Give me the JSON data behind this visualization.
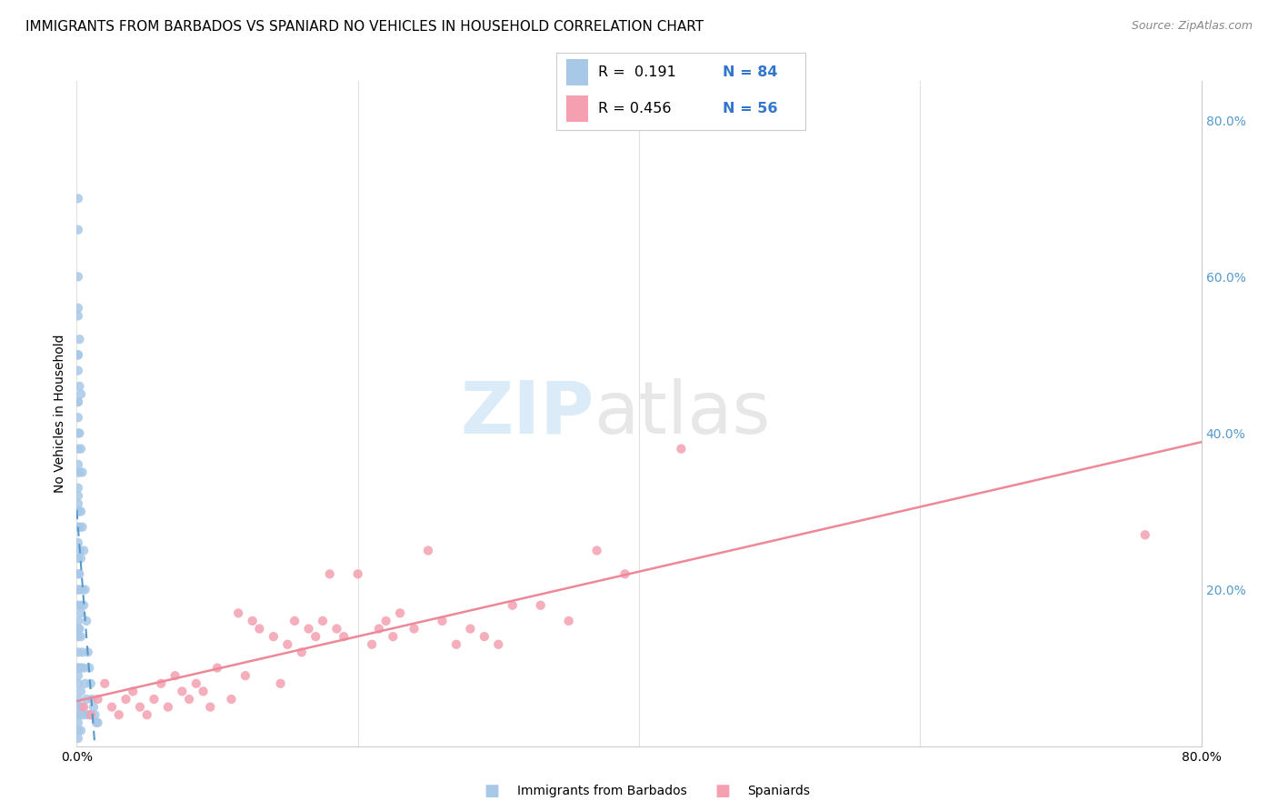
{
  "title": "IMMIGRANTS FROM BARBADOS VS SPANIARD NO VEHICLES IN HOUSEHOLD CORRELATION CHART",
  "source": "Source: ZipAtlas.com",
  "ylabel": "No Vehicles in Household",
  "barbados_color": "#a8c8e8",
  "spaniard_color": "#f4a0b0",
  "barbados_trend_color": "#5599cc",
  "spaniard_trend_color": "#ee8899",
  "background_color": "#ffffff",
  "barbados_x": [
    0.001,
    0.001,
    0.001,
    0.001,
    0.001,
    0.001,
    0.001,
    0.001,
    0.001,
    0.001,
    0.001,
    0.001,
    0.001,
    0.001,
    0.001,
    0.001,
    0.001,
    0.001,
    0.001,
    0.001,
    0.001,
    0.001,
    0.001,
    0.001,
    0.001,
    0.001,
    0.001,
    0.001,
    0.001,
    0.001,
    0.002,
    0.002,
    0.002,
    0.002,
    0.002,
    0.002,
    0.002,
    0.002,
    0.002,
    0.002,
    0.003,
    0.003,
    0.003,
    0.003,
    0.003,
    0.003,
    0.003,
    0.003,
    0.003,
    0.003,
    0.004,
    0.004,
    0.004,
    0.004,
    0.004,
    0.005,
    0.005,
    0.005,
    0.005,
    0.006,
    0.006,
    0.007,
    0.007,
    0.008,
    0.008,
    0.009,
    0.01,
    0.01,
    0.011,
    0.012,
    0.013,
    0.014,
    0.015,
    0.001,
    0.001,
    0.001,
    0.002,
    0.002,
    0.003,
    0.001,
    0.001,
    0.001,
    0.001,
    0.001
  ],
  "barbados_y": [
    0.7,
    0.66,
    0.6,
    0.56,
    0.5,
    0.48,
    0.44,
    0.42,
    0.4,
    0.38,
    0.35,
    0.32,
    0.3,
    0.28,
    0.26,
    0.24,
    0.22,
    0.2,
    0.18,
    0.16,
    0.14,
    0.12,
    0.1,
    0.08,
    0.06,
    0.05,
    0.04,
    0.03,
    0.02,
    0.01,
    0.52,
    0.46,
    0.4,
    0.35,
    0.3,
    0.25,
    0.2,
    0.15,
    0.1,
    0.05,
    0.45,
    0.38,
    0.3,
    0.24,
    0.18,
    0.14,
    0.1,
    0.07,
    0.04,
    0.02,
    0.35,
    0.28,
    0.2,
    0.12,
    0.05,
    0.25,
    0.18,
    0.1,
    0.04,
    0.2,
    0.08,
    0.16,
    0.06,
    0.12,
    0.04,
    0.1,
    0.08,
    0.04,
    0.06,
    0.05,
    0.04,
    0.03,
    0.03,
    0.36,
    0.33,
    0.31,
    0.28,
    0.22,
    0.17,
    0.55,
    0.5,
    0.44,
    0.15,
    0.09
  ],
  "spaniard_x": [
    0.005,
    0.01,
    0.015,
    0.02,
    0.025,
    0.03,
    0.035,
    0.04,
    0.045,
    0.05,
    0.055,
    0.06,
    0.065,
    0.07,
    0.075,
    0.08,
    0.085,
    0.09,
    0.095,
    0.1,
    0.11,
    0.115,
    0.12,
    0.125,
    0.13,
    0.14,
    0.145,
    0.15,
    0.155,
    0.16,
    0.165,
    0.17,
    0.175,
    0.18,
    0.185,
    0.19,
    0.2,
    0.21,
    0.215,
    0.22,
    0.225,
    0.23,
    0.24,
    0.25,
    0.26,
    0.27,
    0.28,
    0.29,
    0.3,
    0.31,
    0.33,
    0.35,
    0.37,
    0.39,
    0.43,
    0.76
  ],
  "spaniard_y": [
    0.05,
    0.04,
    0.06,
    0.08,
    0.05,
    0.04,
    0.06,
    0.07,
    0.05,
    0.04,
    0.06,
    0.08,
    0.05,
    0.09,
    0.07,
    0.06,
    0.08,
    0.07,
    0.05,
    0.1,
    0.06,
    0.17,
    0.09,
    0.16,
    0.15,
    0.14,
    0.08,
    0.13,
    0.16,
    0.12,
    0.15,
    0.14,
    0.16,
    0.22,
    0.15,
    0.14,
    0.22,
    0.13,
    0.15,
    0.16,
    0.14,
    0.17,
    0.15,
    0.25,
    0.16,
    0.13,
    0.15,
    0.14,
    0.13,
    0.18,
    0.18,
    0.16,
    0.25,
    0.22,
    0.38,
    0.27
  ],
  "xlim": [
    0.0,
    0.8
  ],
  "ylim": [
    0.0,
    0.85
  ],
  "xtick_positions": [
    0.0,
    0.2,
    0.4,
    0.6,
    0.8
  ],
  "xtick_labels": [
    "0.0%",
    "",
    "",
    "",
    "80.0%"
  ],
  "ytick_positions": [
    0.2,
    0.4,
    0.6,
    0.8
  ],
  "ytick_labels": [
    "20.0%",
    "40.0%",
    "60.0%",
    "80.0%"
  ],
  "grid_color": "#e0e0e0",
  "title_fontsize": 11,
  "legend_r1_text": "R =  0.191",
  "legend_n1_text": "N = 84",
  "legend_r2_text": "R = 0.456",
  "legend_n2_text": "N = 56"
}
